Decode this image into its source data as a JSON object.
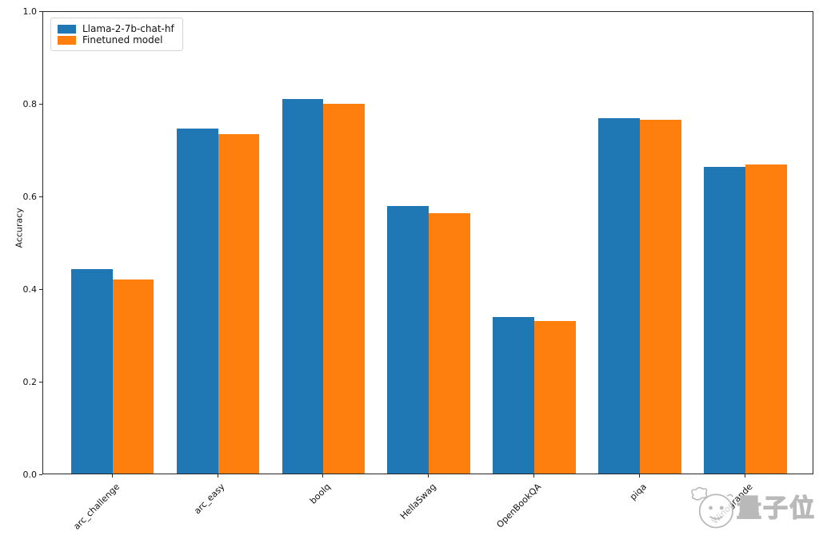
{
  "chart_data": {
    "type": "bar",
    "title": "",
    "xlabel": "",
    "ylabel": "Accuracy",
    "ylim": [
      0.0,
      1.0
    ],
    "yticks": [
      {
        "value": 0.0,
        "label": "0.0"
      },
      {
        "value": 0.2,
        "label": "0.2"
      },
      {
        "value": 0.4,
        "label": "0.4"
      },
      {
        "value": 0.6,
        "label": "0.6"
      },
      {
        "value": 0.8,
        "label": "0.8"
      },
      {
        "value": 1.0,
        "label": "1.0"
      }
    ],
    "categories": [
      "arc_challenge",
      "arc_easy",
      "boolq",
      "HellaSwag",
      "OpenBookQA",
      "piqa",
      "Winogrande"
    ],
    "series": [
      {
        "name": "Llama-2-7b-chat-hf",
        "color": "#1f77b4",
        "values": [
          0.441,
          0.745,
          0.808,
          0.578,
          0.338,
          0.767,
          0.662
        ]
      },
      {
        "name": "Finetuned model",
        "color": "#ff7f0e",
        "values": [
          0.419,
          0.733,
          0.798,
          0.563,
          0.33,
          0.764,
          0.668
        ]
      }
    ],
    "legend_position": "upper left",
    "grid": false,
    "x_tick_rotation": 45
  },
  "watermark": {
    "text": "量子位",
    "mascot": "qbitai-mascot"
  }
}
